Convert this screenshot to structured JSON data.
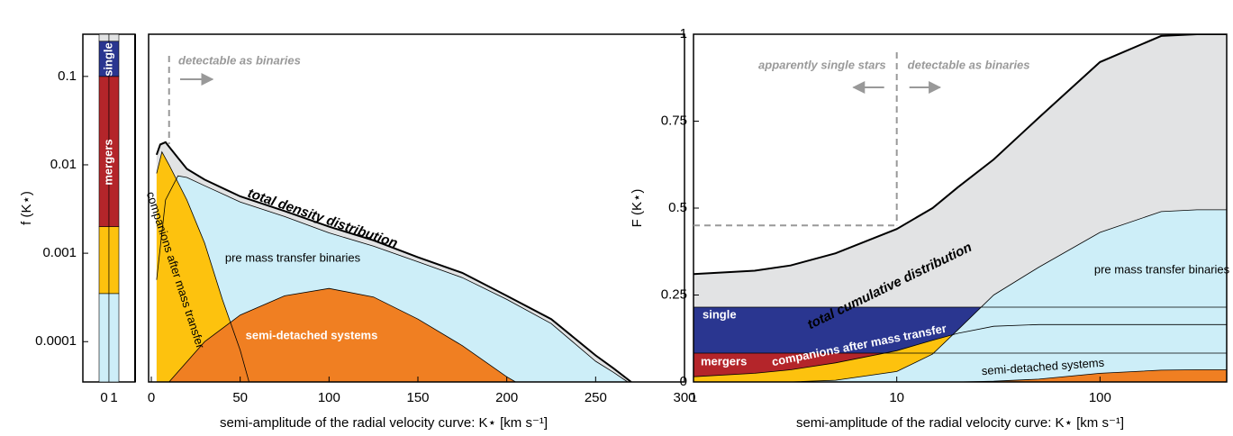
{
  "chart_data": [
    {
      "type": "area",
      "log_y": true,
      "xlabel": "semi-amplitude of the radial velocity curve: K⋆ [km s⁻¹]",
      "ylabel": "f (K⋆)",
      "xlim": [
        0,
        300
      ],
      "xticks": [
        0,
        50,
        100,
        150,
        200,
        250,
        300
      ],
      "ylim": [
        3.5e-05,
        0.3
      ],
      "yticks": [
        0.0001,
        0.001,
        0.01,
        0.1
      ],
      "annotation": "detectable as binaries",
      "threshold_x": 10,
      "series": [
        {
          "name": "total density distribution",
          "color": "#e2e3e4",
          "x": [
            3,
            5,
            8,
            10,
            15,
            20,
            30,
            50,
            75,
            100,
            125,
            150,
            175,
            200,
            225,
            250,
            260,
            270
          ],
          "values": [
            0.013,
            0.017,
            0.018,
            0.016,
            0.012,
            0.009,
            0.0068,
            0.0044,
            0.003,
            0.002,
            0.0014,
            0.0009,
            0.0006,
            0.00033,
            0.00018,
            7e-05,
            5e-05,
            3.5e-05
          ]
        },
        {
          "name": "pre mass transfer binaries",
          "color": "#cdeef8",
          "x": [
            3,
            8,
            15,
            20,
            30,
            50,
            75,
            100,
            125,
            150,
            175,
            200,
            225,
            250,
            260,
            268
          ],
          "values": [
            0.0005,
            0.004,
            0.0075,
            0.0072,
            0.0058,
            0.0038,
            0.0026,
            0.0017,
            0.0012,
            0.0008,
            0.00053,
            0.0003,
            0.00016,
            6e-05,
            4.5e-05,
            3.5e-05
          ]
        },
        {
          "name": "companions after mass transfer",
          "color": "#fdc20e",
          "x": [
            3,
            6,
            10,
            20,
            30,
            40,
            50,
            55
          ],
          "values": [
            0.008,
            0.014,
            0.01,
            0.004,
            0.0013,
            0.0003,
            8e-05,
            3.5e-05
          ]
        },
        {
          "name": "semi-detached systems",
          "color": "#f07f22",
          "x": [
            10,
            30,
            50,
            75,
            100,
            125,
            150,
            175,
            200,
            205
          ],
          "values": [
            3.5e-05,
            0.0001,
            0.0002,
            0.00033,
            0.0004,
            0.00032,
            0.00018,
            9e-05,
            4e-05,
            3.5e-05
          ]
        }
      ],
      "inset": {
        "type": "bar",
        "stacked": true,
        "categories": [
          "0",
          "1"
        ],
        "series": [
          {
            "color": "#cdeef8",
            "values": [
              0.00035,
              0.00035
            ]
          },
          {
            "color": "#fdc20e",
            "values": [
              0.00165,
              0.00165
            ]
          },
          {
            "name": "mergers",
            "color": "#b4252a",
            "values": [
              0.098,
              0.098
            ]
          },
          {
            "name": "single",
            "color": "#2a3690",
            "values": [
              0.15,
              0.15
            ]
          },
          {
            "color": "#e2e3e4",
            "values": [
              0.05,
              0.05
            ]
          }
        ]
      }
    },
    {
      "type": "area",
      "log_x": true,
      "xlabel": "semi-amplitude of the radial velocity curve: K⋆ [km s⁻¹]",
      "ylabel": "F (K⋆)",
      "xlim": [
        1,
        420
      ],
      "xticks": [
        1,
        10,
        100
      ],
      "ylim": [
        0,
        1
      ],
      "yticks": [
        0,
        0.25,
        0.5,
        0.75,
        1
      ],
      "annotations": [
        "apparently single stars",
        "detectable as binaries"
      ],
      "threshold_x": 10,
      "threshold_y": 0.45,
      "x": [
        1,
        2,
        3,
        5,
        10,
        15,
        20,
        30,
        50,
        100,
        200,
        300,
        420
      ],
      "series": [
        {
          "name": "total cumulative distribution",
          "color": "#e2e3e4",
          "values": [
            0.31,
            0.32,
            0.335,
            0.37,
            0.44,
            0.5,
            0.56,
            0.64,
            0.76,
            0.92,
            0.995,
            1,
            1
          ]
        },
        {
          "name": "single",
          "color": "#2a3690",
          "values": [
            0.215,
            0.215,
            0.215,
            0.215,
            0.215,
            0.215,
            0.215,
            0.215,
            0.215,
            0.215,
            0.215,
            0.215,
            0.215
          ]
        },
        {
          "name": "mergers",
          "color": "#b4252a",
          "values": [
            0.083,
            0.083,
            0.083,
            0.083,
            0.083,
            0.083,
            0.083,
            0.083,
            0.083,
            0.083,
            0.083,
            0.083,
            0.083
          ]
        },
        {
          "name": "companions after mass transfer",
          "color": "#fdc20e",
          "values": [
            0.015,
            0.025,
            0.035,
            0.055,
            0.09,
            0.12,
            0.14,
            0.16,
            0.165,
            0.165,
            0.165,
            0.165,
            0.165
          ]
        },
        {
          "name": "pre mass transfer binaries",
          "color": "#cdeef8",
          "values": [
            0,
            0,
            0,
            0.005,
            0.03,
            0.08,
            0.15,
            0.25,
            0.33,
            0.43,
            0.49,
            0.495,
            0.495
          ]
        },
        {
          "name": "semi-detached systems",
          "color": "#f07f22",
          "values": [
            0,
            0,
            0,
            0,
            0,
            0,
            0,
            0.002,
            0.008,
            0.025,
            0.034,
            0.035,
            0.035
          ]
        }
      ]
    }
  ]
}
